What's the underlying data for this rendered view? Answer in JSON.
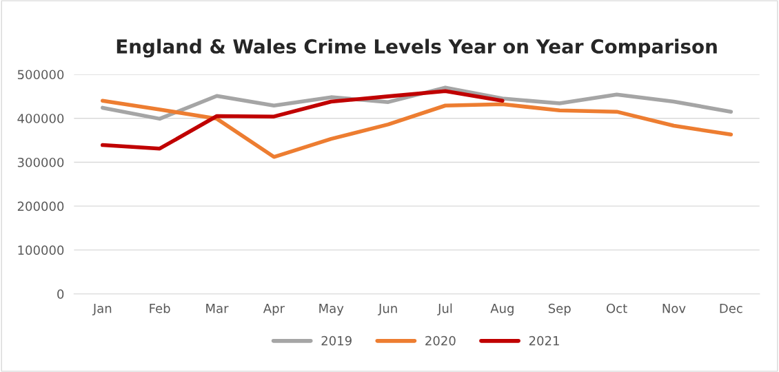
{
  "chart_data": {
    "type": "line",
    "title": "England & Wales Crime Levels Year on Year Comparison",
    "categories": [
      "Jan",
      "Feb",
      "Mar",
      "Apr",
      "May",
      "Jun",
      "Jul",
      "Aug",
      "Sep",
      "Oct",
      "Nov",
      "Dec"
    ],
    "series": [
      {
        "name": "2019",
        "color": "#a5a5a5",
        "values": [
          424000,
          399000,
          451000,
          429000,
          448000,
          437000,
          470000,
          445000,
          434000,
          454000,
          438000,
          415000
        ]
      },
      {
        "name": "2020",
        "color": "#ed7d31",
        "values": [
          440000,
          420000,
          399000,
          312000,
          353000,
          386000,
          429000,
          432000,
          418000,
          415000,
          383000,
          363000
        ]
      },
      {
        "name": "2021",
        "color": "#c00000",
        "values": [
          339000,
          331000,
          405000,
          404000,
          438000,
          450000,
          462000,
          440000,
          null,
          null,
          null,
          null
        ]
      }
    ],
    "ylim": [
      0,
      500000
    ],
    "yticks": [
      0,
      100000,
      200000,
      300000,
      400000,
      500000
    ],
    "grid": "y",
    "legend": "bottom",
    "marker": "none",
    "line_style": "solid"
  }
}
